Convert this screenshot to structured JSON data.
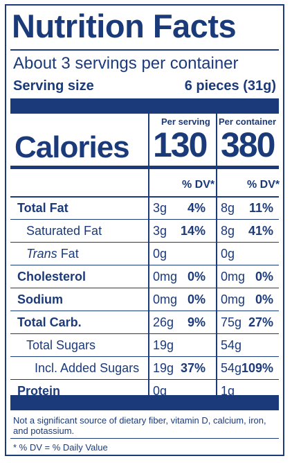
{
  "title": "Nutrition Facts",
  "servings_per_container": "About 3 servings per container",
  "serving_size_label": "Serving size",
  "serving_size_value": "6 pieces (31g)",
  "columns": {
    "per_serving": "Per serving",
    "per_container": "Per container"
  },
  "calories": {
    "label": "Calories",
    "per_serving": "130",
    "per_container": "380"
  },
  "dv_header": "% DV*",
  "nutrients": [
    {
      "name": "Total Fat",
      "bold": true,
      "indent": 0,
      "serving_amount": "3g",
      "serving_dv": "4%",
      "container_amount": "8g",
      "container_dv": "11%"
    },
    {
      "name": "Saturated Fat",
      "bold": false,
      "indent": 1,
      "serving_amount": "3g",
      "serving_dv": "14%",
      "container_amount": "8g",
      "container_dv": "41%"
    },
    {
      "name_italic": "Trans",
      "name": "Fat",
      "bold": false,
      "indent": 1,
      "serving_amount": "0g",
      "serving_dv": "",
      "container_amount": "0g",
      "container_dv": ""
    },
    {
      "name": "Cholesterol",
      "bold": true,
      "indent": 0,
      "serving_amount": "0mg",
      "serving_dv": "0%",
      "container_amount": "0mg",
      "container_dv": "0%"
    },
    {
      "name": "Sodium",
      "bold": true,
      "indent": 0,
      "serving_amount": "0mg",
      "serving_dv": "0%",
      "container_amount": "0mg",
      "container_dv": "0%"
    },
    {
      "name": "Total Carb.",
      "bold": true,
      "indent": 0,
      "serving_amount": "26g",
      "serving_dv": "9%",
      "container_amount": "75g",
      "container_dv": "27%"
    },
    {
      "name": "Total Sugars",
      "bold": false,
      "indent": 1,
      "serving_amount": "19g",
      "serving_dv": "",
      "container_amount": "54g",
      "container_dv": ""
    },
    {
      "name": "Incl. Added Sugars",
      "bold": false,
      "indent": 2,
      "serving_amount": "19g",
      "serving_dv": "37%",
      "container_amount": "54g",
      "container_dv": "109%"
    },
    {
      "name": "Protein",
      "bold": true,
      "indent": 0,
      "serving_amount": "0g",
      "serving_dv": "",
      "container_amount": "1g",
      "container_dv": ""
    }
  ],
  "footnote": "Not a significant source of dietary fiber, vitamin D, calcium, iron, and potassium.",
  "dv_footnote": "* % DV = % Daily Value",
  "colors": {
    "ink": "#1b3a7a"
  }
}
